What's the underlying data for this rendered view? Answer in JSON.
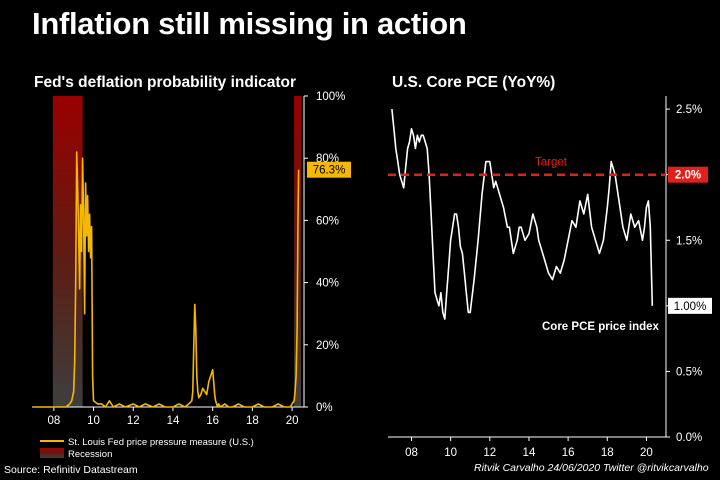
{
  "title": "Inflation still missing in action",
  "source": "Source: Refinitiv Datastream",
  "credit": "Ritvik Carvalho 24/06/2020 Twitter @ritvikcarvalho",
  "colors": {
    "background": "#000000",
    "yellow": "#F5B800",
    "red": "#E0201A",
    "recession_dark": "#8B0000",
    "white": "#FFFFFF"
  },
  "chart_data": [
    {
      "type": "line",
      "title": "Fed's deflation probability indicator",
      "x_tick_labels": [
        "08",
        "10",
        "12",
        "14",
        "16",
        "18",
        "20"
      ],
      "x_tick_years": [
        2008,
        2010,
        2012,
        2014,
        2016,
        2018,
        2020
      ],
      "xlim": [
        2006.9,
        2020.6
      ],
      "y_tick_labels": [
        "0%",
        "20%",
        "40%",
        "60%",
        "80%",
        "100%"
      ],
      "y_tick_values": [
        0,
        20,
        40,
        60,
        80,
        100
      ],
      "ylim": [
        0,
        100
      ],
      "y_axis_side": "right",
      "recessions": [
        [
          2007.95,
          2009.45
        ],
        [
          2020.1,
          2020.45
        ]
      ],
      "series": [
        {
          "name": "St. Louis Fed price pressure measure (U.S.)",
          "color": "#F5B800",
          "x": [
            2007.0,
            2007.5,
            2008.0,
            2008.3,
            2008.6,
            2008.8,
            2008.9,
            2009.0,
            2009.05,
            2009.1,
            2009.15,
            2009.2,
            2009.25,
            2009.3,
            2009.35,
            2009.4,
            2009.45,
            2009.5,
            2009.55,
            2009.6,
            2009.65,
            2009.7,
            2009.75,
            2009.8,
            2009.85,
            2009.9,
            2009.95,
            2010.0,
            2010.2,
            2010.4,
            2010.6,
            2010.8,
            2011.0,
            2011.3,
            2011.6,
            2012.0,
            2012.3,
            2012.6,
            2013.0,
            2013.3,
            2013.6,
            2014.0,
            2014.3,
            2014.6,
            2014.8,
            2014.95,
            2015.0,
            2015.05,
            2015.1,
            2015.15,
            2015.2,
            2015.25,
            2015.3,
            2015.4,
            2015.5,
            2015.6,
            2015.7,
            2015.8,
            2015.9,
            2016.0,
            2016.05,
            2016.1,
            2016.15,
            2016.2,
            2016.25,
            2016.3,
            2016.4,
            2016.6,
            2016.8,
            2017.0,
            2017.3,
            2017.6,
            2018.0,
            2018.3,
            2018.6,
            2019.0,
            2019.3,
            2019.6,
            2019.9,
            2020.0,
            2020.1,
            2020.15,
            2020.2,
            2020.25,
            2020.3,
            2020.33
          ],
          "values": [
            0,
            0,
            0,
            0,
            0,
            1,
            2,
            5,
            15,
            40,
            82,
            70,
            55,
            38,
            65,
            50,
            80,
            62,
            30,
            72,
            55,
            68,
            50,
            62,
            48,
            58,
            10,
            2,
            1,
            1,
            0,
            2,
            0,
            1,
            0,
            1,
            0,
            1,
            0,
            1,
            0,
            0,
            1,
            0,
            1,
            2,
            5,
            20,
            33,
            25,
            10,
            5,
            3,
            4,
            6,
            5,
            4,
            8,
            10,
            12,
            8,
            4,
            2,
            1,
            0,
            1,
            0,
            1,
            0,
            0,
            1,
            0,
            0,
            1,
            0,
            0,
            1,
            0,
            0,
            1,
            2,
            5,
            10,
            25,
            60,
            76.3
          ]
        }
      ],
      "annotations": [
        {
          "label": "76.3%",
          "value": 76.3
        }
      ],
      "legend": [
        {
          "label": "St. Louis Fed price pressure measure (U.S.)",
          "kind": "line",
          "color": "#F5B800"
        },
        {
          "label": "Recession",
          "kind": "patch",
          "color": "#8B0000"
        }
      ],
      "legend_position": "bottom-left"
    },
    {
      "type": "line",
      "title": "U.S. Core PCE (YoY%)",
      "x_tick_labels": [
        "08",
        "10",
        "12",
        "14",
        "16",
        "18",
        "20"
      ],
      "x_tick_years": [
        2008,
        2010,
        2012,
        2014,
        2016,
        2018,
        2020
      ],
      "xlim": [
        2006.8,
        2021.0
      ],
      "y_tick_labels": [
        "0.0%",
        "0.5%",
        "1.0%",
        "1.5%",
        "2.0%",
        "2.5%"
      ],
      "y_tick_values": [
        0,
        0.5,
        1.0,
        1.5,
        2.0,
        2.5
      ],
      "ylim": [
        0,
        2.6
      ],
      "y_axis_side": "right",
      "target": {
        "label": "Target",
        "value": 2.0,
        "tag": "2.0%",
        "color": "#E0201A"
      },
      "series": [
        {
          "name": "Core PCE price index",
          "color": "#FFFFFF",
          "x": [
            2007.0,
            2007.1,
            2007.2,
            2007.3,
            2007.4,
            2007.5,
            2007.6,
            2007.7,
            2007.8,
            2007.9,
            2008.0,
            2008.1,
            2008.2,
            2008.3,
            2008.4,
            2008.5,
            2008.6,
            2008.7,
            2008.8,
            2008.9,
            2009.0,
            2009.1,
            2009.2,
            2009.3,
            2009.4,
            2009.5,
            2009.6,
            2009.7,
            2009.8,
            2009.9,
            2010.0,
            2010.1,
            2010.2,
            2010.3,
            2010.4,
            2010.5,
            2010.6,
            2010.7,
            2010.8,
            2010.9,
            2011.0,
            2011.2,
            2011.4,
            2011.6,
            2011.8,
            2012.0,
            2012.1,
            2012.2,
            2012.3,
            2012.5,
            2012.7,
            2012.9,
            2013.0,
            2013.2,
            2013.4,
            2013.5,
            2013.6,
            2013.8,
            2014.0,
            2014.2,
            2014.4,
            2014.5,
            2014.6,
            2014.8,
            2015.0,
            2015.2,
            2015.4,
            2015.6,
            2015.8,
            2016.0,
            2016.2,
            2016.4,
            2016.6,
            2016.8,
            2017.0,
            2017.2,
            2017.4,
            2017.6,
            2017.8,
            2018.0,
            2018.1,
            2018.2,
            2018.4,
            2018.6,
            2018.8,
            2019.0,
            2019.2,
            2019.4,
            2019.6,
            2019.8,
            2019.9,
            2020.0,
            2020.1,
            2020.2,
            2020.3
          ],
          "values": [
            2.5,
            2.35,
            2.2,
            2.1,
            2.0,
            1.95,
            1.9,
            2.05,
            2.2,
            2.25,
            2.35,
            2.3,
            2.2,
            2.3,
            2.25,
            2.3,
            2.3,
            2.25,
            2.2,
            2.0,
            1.7,
            1.4,
            1.1,
            1.05,
            1.0,
            1.1,
            0.95,
            0.9,
            1.1,
            1.3,
            1.5,
            1.6,
            1.7,
            1.7,
            1.6,
            1.45,
            1.4,
            1.25,
            1.1,
            0.95,
            0.95,
            1.2,
            1.5,
            1.85,
            2.1,
            2.1,
            2.0,
            1.9,
            1.95,
            1.85,
            1.75,
            1.6,
            1.6,
            1.4,
            1.5,
            1.6,
            1.6,
            1.5,
            1.55,
            1.7,
            1.6,
            1.5,
            1.45,
            1.35,
            1.25,
            1.2,
            1.3,
            1.25,
            1.35,
            1.5,
            1.65,
            1.6,
            1.8,
            1.7,
            1.85,
            1.6,
            1.5,
            1.4,
            1.5,
            1.75,
            1.9,
            2.1,
            2.0,
            1.8,
            1.6,
            1.5,
            1.7,
            1.6,
            1.65,
            1.5,
            1.6,
            1.75,
            1.8,
            1.6,
            1.0
          ]
        }
      ],
      "annotations": [
        {
          "label": "1.00%",
          "value": 1.0
        }
      ],
      "series_label": "Core PCE price index"
    }
  ]
}
